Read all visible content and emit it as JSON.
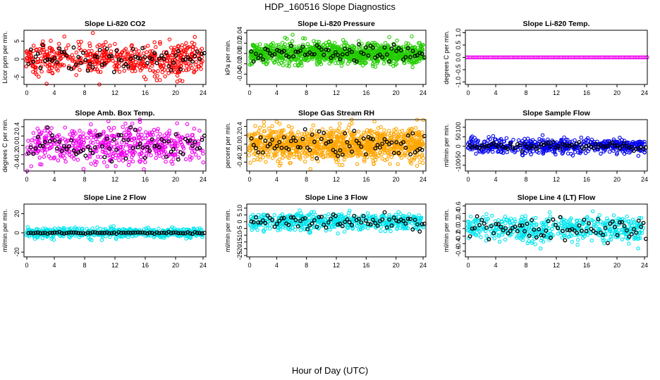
{
  "figure": {
    "title": "HDP_160516  Slope Diagnostics",
    "xlabel": "Hour of Day (UTC)"
  },
  "chart_data": [
    {
      "type": "scatter",
      "title": "Slope Li-820 CO2",
      "xlabel": "",
      "ylabel": "Licor ppm per min.",
      "xlim": [
        0,
        24
      ],
      "ylim": [
        -7,
        8
      ],
      "xticks": [
        0,
        4,
        8,
        12,
        16,
        20,
        24
      ],
      "yticks": [
        -5,
        0,
        5
      ],
      "ytick_labels": [
        "-5",
        "0",
        "5"
      ],
      "color": "#ff0000",
      "spread": 2.4,
      "black_spread": 1.6,
      "n_points": 520,
      "n_black": 75
    },
    {
      "type": "scatter",
      "title": "Slope Li-820 Pressure",
      "xlabel": "",
      "ylabel": "kPa per min.",
      "xlim": [
        0,
        24
      ],
      "ylim": [
        -0.06,
        0.045
      ],
      "xticks": [
        0,
        4,
        8,
        12,
        16,
        20,
        24
      ],
      "yticks": [
        -0.04,
        -0.02,
        0,
        0.02,
        0.04
      ],
      "ytick_labels": [
        "-0.04",
        "-0.02",
        "0.00",
        "0.02",
        "0.04"
      ],
      "color": "#22cc00",
      "spread": 0.01,
      "black_spread": 0.008,
      "n_points": 1100,
      "n_black": 75
    },
    {
      "type": "scatter",
      "title": "Slope Li-820 Temp.",
      "xlabel": "",
      "ylabel": "degrees C per min.",
      "xlim": [
        0,
        24
      ],
      "ylim": [
        -1.1,
        1.1
      ],
      "xticks": [
        0,
        4,
        8,
        12,
        16,
        20,
        24
      ],
      "yticks": [
        -1,
        -0.5,
        0,
        0.5,
        1
      ],
      "ytick_labels": [
        "-1.0",
        "-0.5",
        "0.0",
        "0.5",
        "1.0"
      ],
      "color": "#ee00ee",
      "spread": 0,
      "black_spread": 0,
      "n_points": 120,
      "n_black": 0
    },
    {
      "type": "scatter",
      "title": "Slope Amb. Box Temp.",
      "xlabel": "",
      "ylabel": "degrees C per min.",
      "xlim": [
        0,
        24
      ],
      "ylim": [
        -0.55,
        0.55
      ],
      "xticks": [
        0,
        4,
        8,
        12,
        16,
        20,
        24
      ],
      "yticks": [
        -0.4,
        -0.2,
        0,
        0.2,
        0.4
      ],
      "ytick_labels": [
        "-0.4",
        "-0.2",
        "0.0",
        "0.2",
        "0.4"
      ],
      "color": "#ee00ee",
      "spread": 0.2,
      "black_spread": 0.14,
      "n_points": 520,
      "n_black": 75
    },
    {
      "type": "scatter",
      "title": "Slope Gas Stream RH",
      "xlabel": "",
      "ylabel": "percent per min.",
      "xlim": [
        0,
        24
      ],
      "ylim": [
        -0.6,
        0.55
      ],
      "xticks": [
        0,
        4,
        8,
        12,
        16,
        20,
        24
      ],
      "yticks": [
        -0.4,
        -0.2,
        0,
        0.2,
        0.4
      ],
      "ytick_labels": [
        "-0.4",
        "-0.2",
        "0.0",
        "0.2",
        "0.4"
      ],
      "color": "#ffa500",
      "spread": 0.18,
      "black_spread": 0.14,
      "n_points": 1100,
      "n_black": 75
    },
    {
      "type": "scatter",
      "title": "Slope Sample Flow",
      "xlabel": "",
      "ylabel": "ml/min per min.",
      "xlim": [
        0,
        24
      ],
      "ylim": [
        -130,
        140
      ],
      "xticks": [
        0,
        4,
        8,
        12,
        16,
        20,
        24
      ],
      "yticks": [
        -100,
        -50,
        0,
        50,
        100
      ],
      "ytick_labels": [
        "-100",
        "-50",
        "0",
        "50",
        "100"
      ],
      "color": "#0000ee",
      "spread": 20,
      "black_spread": 10,
      "n_points": 520,
      "n_black": 75
    },
    {
      "type": "scatter",
      "title": "Slope Line 2 Flow",
      "xlabel": "",
      "ylabel": "ml/min per min.",
      "xlim": [
        0,
        24
      ],
      "ylim": [
        -25,
        30
      ],
      "xticks": [
        0,
        4,
        8,
        12,
        16,
        20,
        24
      ],
      "yticks": [
        -20,
        0,
        20
      ],
      "ytick_labels": [
        "-20",
        "0",
        "20"
      ],
      "color": "#00e5ee",
      "spread": 2.5,
      "black_spread": 0.4,
      "n_points": 520,
      "n_black": 75
    },
    {
      "type": "scatter",
      "title": "Slope Line 3 Flow",
      "xlabel": "",
      "ylabel": "ml/min per min.",
      "xlim": [
        0,
        24
      ],
      "ylim": [
        -26,
        13
      ],
      "xticks": [
        0,
        4,
        8,
        12,
        16,
        20,
        24
      ],
      "yticks": [
        -25,
        -20,
        -15,
        -10,
        -5,
        0,
        5,
        10
      ],
      "ytick_labels": [
        "-25",
        "-20",
        "-15",
        "-10",
        "-5",
        "0",
        "5",
        "10"
      ],
      "color": "#00e5ee",
      "spread": 3.2,
      "black_spread": 2.8,
      "n_points": 520,
      "n_black": 75
    },
    {
      "type": "scatter",
      "title": "Slope Line 4 (LT) Flow",
      "xlabel": "",
      "ylabel": "ml/min per min.",
      "xlim": [
        0,
        24
      ],
      "ylim": [
        -0.75,
        0.65
      ],
      "xticks": [
        0,
        4,
        8,
        12,
        16,
        20,
        24
      ],
      "yticks": [
        -0.6,
        -0.4,
        -0.2,
        0,
        0.2,
        0.4,
        0.6
      ],
      "ytick_labels": [
        "-0.6",
        "-0.4",
        "-0.2",
        "0.0",
        "0.2",
        "0.4",
        "0.6"
      ],
      "color": "#00e5ee",
      "spread": 0.17,
      "black_spread": 0.14,
      "n_points": 520,
      "n_black": 75
    }
  ]
}
